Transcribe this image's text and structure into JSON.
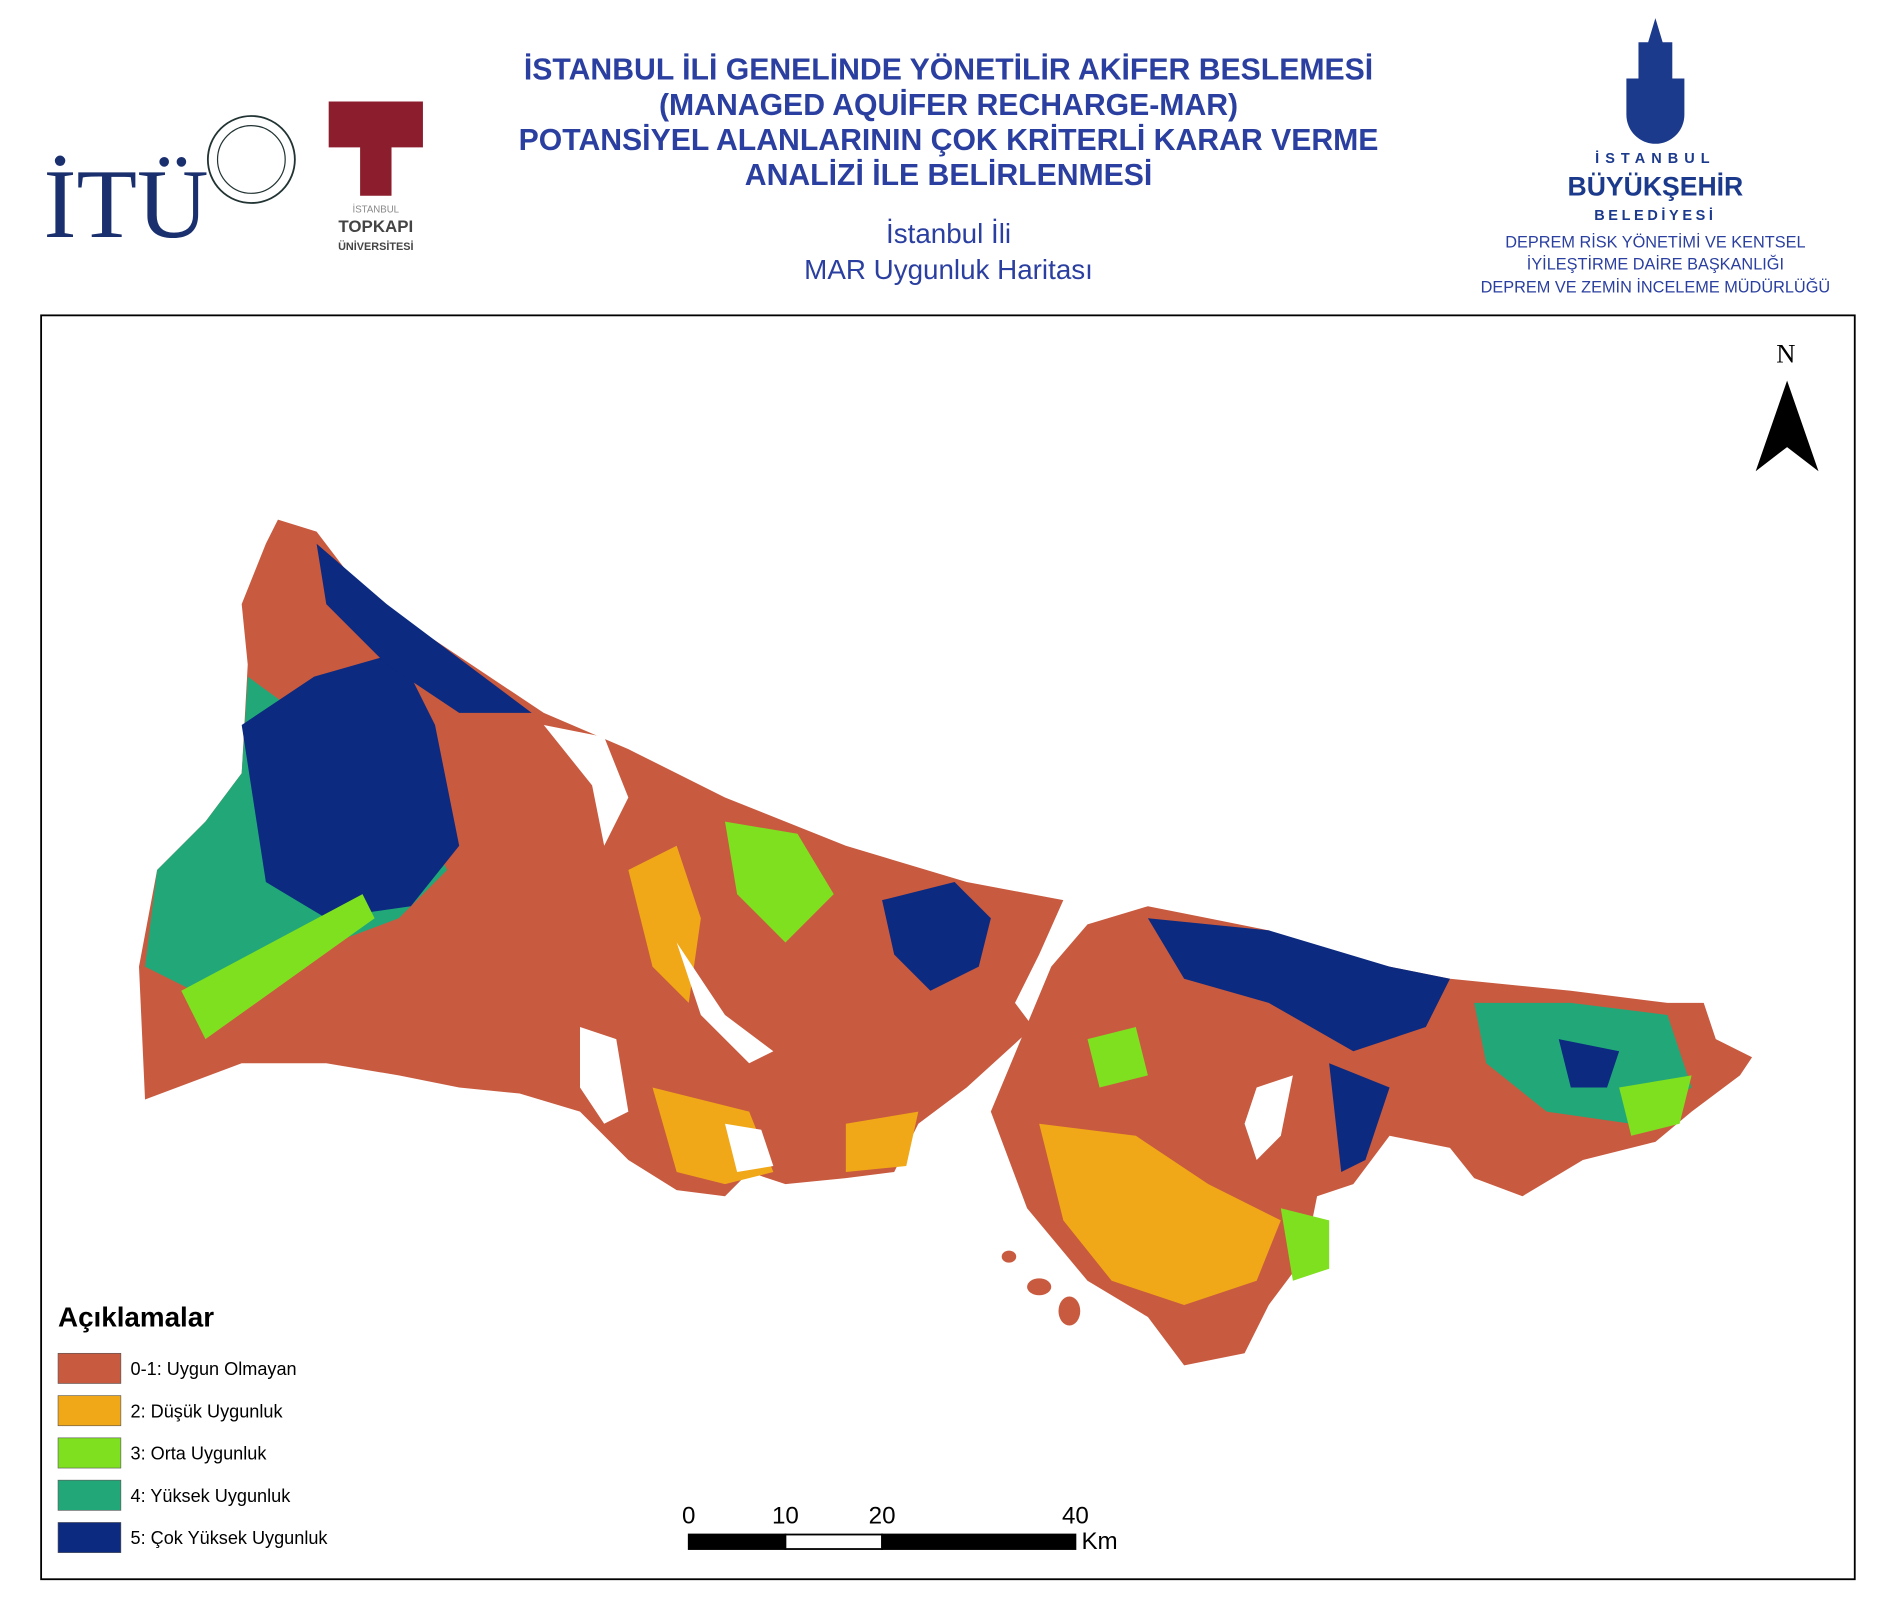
{
  "header": {
    "title_lines": [
      "İSTANBUL İLİ GENELİNDE YÖNETİLİR AKİFER BESLEMESİ",
      "(MANAGED AQUİFER RECHARGE-MAR)",
      "POTANSİYEL ALANLARININ ÇOK KRİTERLİ KARAR VERME",
      "ANALİZİ İLE BELİRLENMESİ"
    ],
    "subtitle_lines": [
      "İstanbul İli",
      "MAR Uygunluk Haritası"
    ]
  },
  "logos": {
    "itu": "İTÜ",
    "topkapi": [
      "İSTANBUL",
      "TOPKAPI",
      "ÜNİVERSİTESİ"
    ],
    "ibb": [
      "İSTANBUL",
      "BÜYÜKŞEHİR",
      "BELEDİYESİ"
    ],
    "ibb_department": [
      "DEPREM RİSK YÖNETİMİ VE KENTSEL",
      "İYİLEŞTİRME DAİRE BAŞKANLIĞI",
      "DEPREM VE ZEMİN İNCELEME MÜDÜRLÜĞÜ"
    ]
  },
  "map": {
    "north_label": "N",
    "legend": {
      "title": "Açıklamalar",
      "items": [
        {
          "label": "0-1: Uygun Olmayan",
          "color": "#c85a3f"
        },
        {
          "label": "2: Düşük Uygunluk",
          "color": "#f0a818"
        },
        {
          "label": "3: Orta Uygunluk",
          "color": "#7fe020"
        },
        {
          "label": "4: Yüksek Uygunluk",
          "color": "#22a878"
        },
        {
          "label": "5: Çok Yüksek Uygunluk",
          "color": "#0b2a80"
        }
      ]
    },
    "scale_bar": {
      "ticks": [
        0,
        10,
        20,
        40
      ],
      "unit": "Km"
    }
  }
}
